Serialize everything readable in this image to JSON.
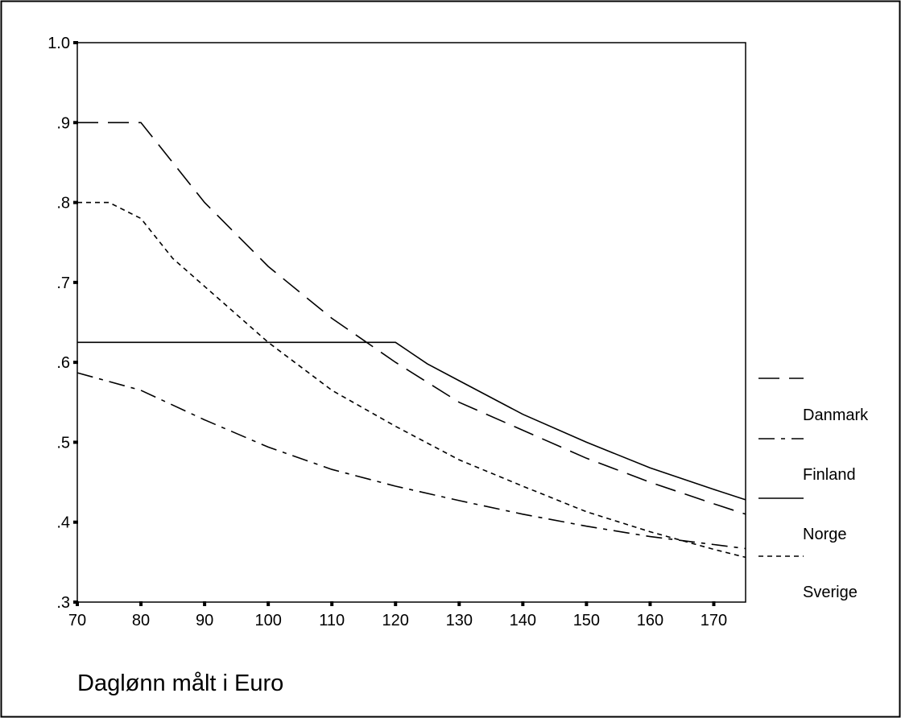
{
  "chart_data": {
    "type": "line",
    "xlabel": "Daglønn målt i Euro",
    "ylabel": "",
    "xlim": [
      70,
      175
    ],
    "ylim": [
      0.3,
      1.0
    ],
    "x_ticks": [
      70,
      80,
      90,
      100,
      110,
      120,
      130,
      140,
      150,
      160,
      170
    ],
    "x_tick_labels": [
      "70",
      "80",
      "90",
      "100",
      "110",
      "120",
      "130",
      "140",
      "150",
      "160",
      "170"
    ],
    "y_ticks": [
      0.3,
      0.4,
      0.5,
      0.6,
      0.7,
      0.8,
      0.9,
      1.0
    ],
    "y_tick_labels": [
      ".3",
      ".4",
      ".5",
      ".6",
      ".7",
      ".8",
      ".9",
      "1.0"
    ],
    "legend_placement": "right",
    "series": [
      {
        "name": "Danmark",
        "style": "long-dash",
        "color": "#000000",
        "x": [
          70,
          80,
          90,
          100,
          110,
          120,
          130,
          140,
          150,
          160,
          170,
          175
        ],
        "y": [
          0.9,
          0.9,
          0.8,
          0.72,
          0.655,
          0.6,
          0.55,
          0.515,
          0.48,
          0.45,
          0.423,
          0.41
        ]
      },
      {
        "name": "Finland",
        "style": "dash-dot",
        "color": "#000000",
        "x": [
          70,
          80,
          90,
          100,
          110,
          120,
          130,
          140,
          150,
          160,
          170,
          175
        ],
        "y": [
          0.587,
          0.565,
          0.528,
          0.494,
          0.466,
          0.445,
          0.427,
          0.41,
          0.395,
          0.382,
          0.372,
          0.367
        ]
      },
      {
        "name": "Norge",
        "style": "solid",
        "color": "#000000",
        "x": [
          70,
          120,
          125,
          130,
          140,
          150,
          160,
          170,
          175
        ],
        "y": [
          0.625,
          0.625,
          0.598,
          0.577,
          0.535,
          0.5,
          0.468,
          0.441,
          0.428
        ]
      },
      {
        "name": "Sverige",
        "style": "short-dash",
        "color": "#000000",
        "x": [
          70,
          75,
          80,
          85,
          90,
          100,
          110,
          120,
          130,
          140,
          150,
          160,
          170,
          175
        ],
        "y": [
          0.8,
          0.8,
          0.78,
          0.73,
          0.695,
          0.625,
          0.565,
          0.52,
          0.478,
          0.445,
          0.413,
          0.388,
          0.366,
          0.356
        ]
      }
    ]
  }
}
